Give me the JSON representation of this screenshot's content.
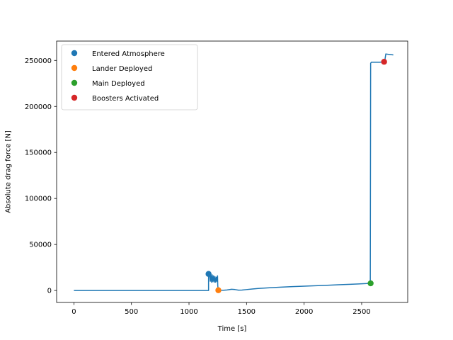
{
  "chart_data": {
    "type": "line",
    "title": "",
    "xlabel": "Time [s]",
    "ylabel": "Absolute drag force [N]",
    "xlim": [
      -150,
      2900
    ],
    "ylim": [
      -13000,
      271000
    ],
    "xticks": [
      0,
      500,
      1000,
      1500,
      2000,
      2500
    ],
    "yticks": [
      0,
      50000,
      100000,
      150000,
      200000,
      250000
    ],
    "grid": false,
    "legend_position": "top-left",
    "line_color": "#1f77b4",
    "series": [
      {
        "points": [
          [
            0,
            0
          ],
          [
            1170,
            0
          ],
          [
            1170,
            18000
          ],
          [
            1178,
            17500
          ],
          [
            1185,
            10000
          ],
          [
            1190,
            18000
          ],
          [
            1196,
            9000
          ],
          [
            1202,
            17000
          ],
          [
            1208,
            9500
          ],
          [
            1214,
            16000
          ],
          [
            1220,
            9000
          ],
          [
            1226,
            15000
          ],
          [
            1232,
            9000
          ],
          [
            1238,
            14500
          ],
          [
            1243,
            10000
          ],
          [
            1248,
            16000
          ],
          [
            1250,
            5000
          ],
          [
            1255,
            500
          ],
          [
            1260,
            300
          ],
          [
            1300,
            300
          ],
          [
            1330,
            600
          ],
          [
            1370,
            1300
          ],
          [
            1400,
            1000
          ],
          [
            1430,
            400
          ],
          [
            1460,
            500
          ],
          [
            1500,
            1000
          ],
          [
            1550,
            1600
          ],
          [
            1600,
            2200
          ],
          [
            1700,
            3000
          ],
          [
            1800,
            3600
          ],
          [
            1900,
            4200
          ],
          [
            2000,
            4700
          ],
          [
            2100,
            5200
          ],
          [
            2200,
            5700
          ],
          [
            2300,
            6200
          ],
          [
            2400,
            6700
          ],
          [
            2500,
            7300
          ],
          [
            2575,
            7800
          ],
          [
            2578,
            247000
          ],
          [
            2585,
            248000
          ],
          [
            2660,
            248000
          ],
          [
            2700,
            249000
          ],
          [
            2710,
            257000
          ],
          [
            2740,
            256500
          ],
          [
            2775,
            256000
          ]
        ]
      }
    ],
    "events": [
      {
        "name": "Entered Atmosphere",
        "x": 1170,
        "y": 18000,
        "color": "#1f77b4"
      },
      {
        "name": "Lander Deployed",
        "x": 1255,
        "y": 300,
        "color": "#ff7f0e"
      },
      {
        "name": "Main Deployed",
        "x": 2578,
        "y": 7800,
        "color": "#2ca02c"
      },
      {
        "name": "Boosters Activated",
        "x": 2695,
        "y": 248500,
        "color": "#d62728"
      }
    ]
  }
}
